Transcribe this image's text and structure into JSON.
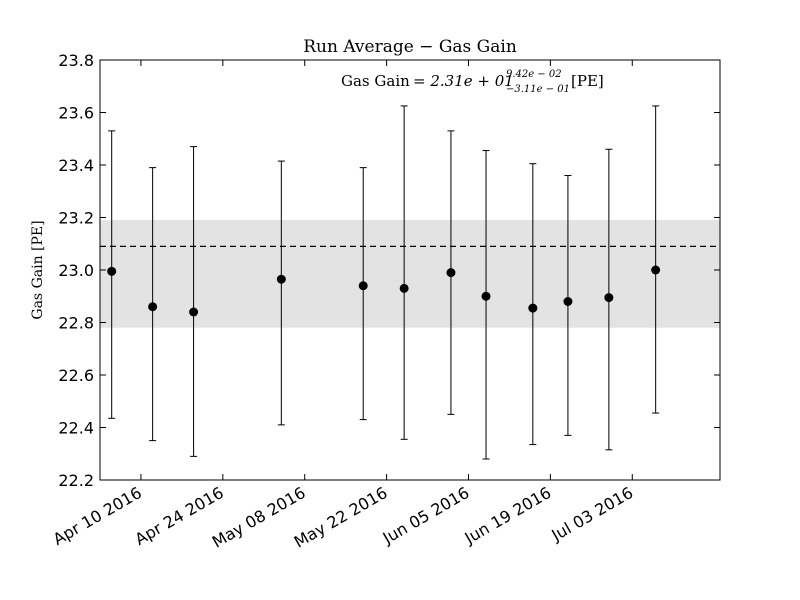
{
  "chart_data": {
    "type": "scatter",
    "title": "Run Average − Gas Gain",
    "ylabel": "Gas Gain [PE]",
    "xlabel": "",
    "annotation": {
      "prefix": "Gas Gain",
      "value": "= 2.31e + 01",
      "sup": "9.42e − 02",
      "sub": "−3.11e − 01",
      "unit": "[PE]"
    },
    "ylim": [
      22.2,
      23.8
    ],
    "yticks": [
      "22.2",
      "22.4",
      "22.6",
      "22.8",
      "23.0",
      "23.2",
      "23.4",
      "23.6",
      "23.8"
    ],
    "xlim": [
      "2016-04-03",
      "2016-07-18"
    ],
    "xticks": [
      {
        "date": "2016-04-10",
        "label": "Apr 10 2016"
      },
      {
        "date": "2016-04-24",
        "label": "Apr 24 2016"
      },
      {
        "date": "2016-05-08",
        "label": "May 08 2016"
      },
      {
        "date": "2016-05-22",
        "label": "May 22 2016"
      },
      {
        "date": "2016-06-05",
        "label": "Jun 05 2016"
      },
      {
        "date": "2016-06-19",
        "label": "Jun 19 2016"
      },
      {
        "date": "2016-07-03",
        "label": "Jul 03 2016"
      }
    ],
    "mean": 23.09,
    "band": [
      22.78,
      23.19
    ],
    "grid": false,
    "points": [
      {
        "x": "2016-04-05",
        "y": 22.995,
        "lo": 22.435,
        "hi": 23.53
      },
      {
        "x": "2016-04-12",
        "y": 22.86,
        "lo": 22.35,
        "hi": 23.39
      },
      {
        "x": "2016-04-19",
        "y": 22.84,
        "lo": 22.29,
        "hi": 23.47
      },
      {
        "x": "2016-05-04",
        "y": 22.965,
        "lo": 22.41,
        "hi": 23.415
      },
      {
        "x": "2016-05-18",
        "y": 22.94,
        "lo": 22.43,
        "hi": 23.39
      },
      {
        "x": "2016-05-25",
        "y": 22.93,
        "lo": 22.355,
        "hi": 23.625
      },
      {
        "x": "2016-06-02",
        "y": 22.99,
        "lo": 22.45,
        "hi": 23.53
      },
      {
        "x": "2016-06-08",
        "y": 22.9,
        "lo": 22.28,
        "hi": 23.455
      },
      {
        "x": "2016-06-16",
        "y": 22.855,
        "lo": 22.335,
        "hi": 23.405
      },
      {
        "x": "2016-06-22",
        "y": 22.88,
        "lo": 22.37,
        "hi": 23.36
      },
      {
        "x": "2016-06-29",
        "y": 22.895,
        "lo": 22.315,
        "hi": 23.46
      },
      {
        "x": "2016-07-07",
        "y": 23.0,
        "lo": 22.455,
        "hi": 23.625
      }
    ],
    "colors": {
      "points": "#000000",
      "band": "#e3e3e3",
      "mean_line": "#000000"
    }
  }
}
